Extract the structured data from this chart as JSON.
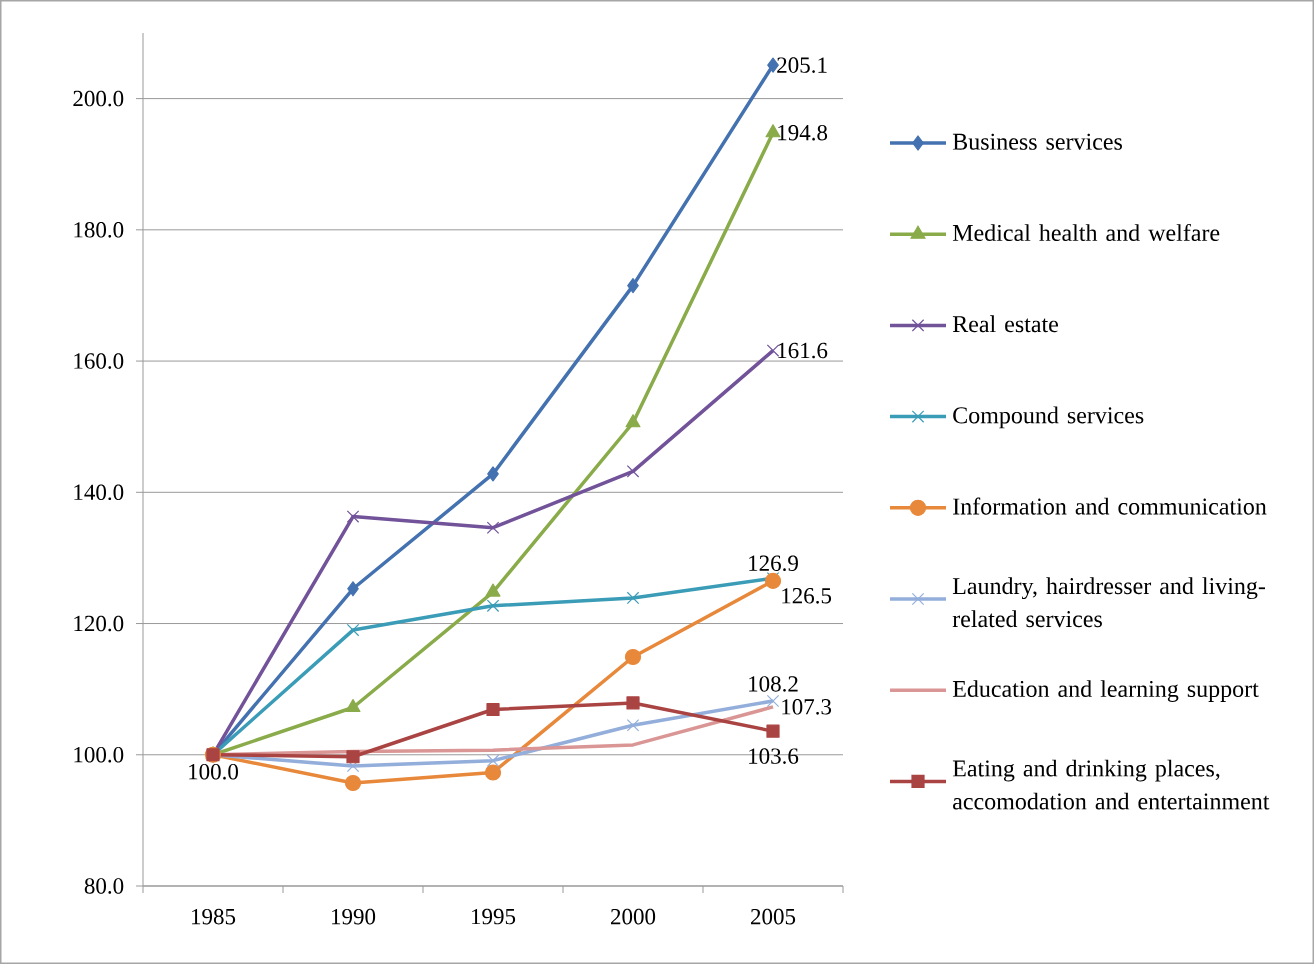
{
  "chart_data": {
    "type": "line",
    "categories": [
      "1985",
      "1990",
      "1995",
      "2000",
      "2005"
    ],
    "ylim": [
      80,
      210
    ],
    "yticks": [
      {
        "value": 80,
        "label": "80.0"
      },
      {
        "value": 100,
        "label": "100.0"
      },
      {
        "value": 120,
        "label": "120.0"
      },
      {
        "value": 140,
        "label": "140.0"
      },
      {
        "value": 160,
        "label": "160.0"
      },
      {
        "value": 180,
        "label": "180.0"
      },
      {
        "value": 200,
        "label": "200.0"
      }
    ],
    "grid": "y",
    "legend": "right",
    "line_style": "solid",
    "series": [
      {
        "name": "Business services",
        "color": "#4472b0",
        "marker": "diamond",
        "values": [
          100,
          125.3,
          142.8,
          171.5,
          205.1
        ],
        "value_labels": [
          null,
          null,
          null,
          null,
          "205.1"
        ]
      },
      {
        "name": "Medical health and welfare",
        "color": "#8aab4a",
        "marker": "triangle",
        "values": [
          100,
          107.2,
          124.8,
          150.6,
          194.8
        ],
        "value_labels": [
          null,
          null,
          null,
          null,
          "194.8"
        ]
      },
      {
        "name": "Real estate",
        "color": "#72539a",
        "marker": "cross",
        "values": [
          100,
          136.3,
          134.6,
          143.2,
          161.6
        ],
        "value_labels": [
          null,
          null,
          null,
          null,
          "161.6"
        ]
      },
      {
        "name": "Compound services",
        "color": "#3a9cb6",
        "marker": "cross",
        "values": [
          100,
          119.0,
          122.7,
          123.9,
          126.9
        ],
        "value_labels": [
          null,
          null,
          null,
          null,
          "126.9"
        ]
      },
      {
        "name": "Information and communication",
        "color": "#e8883a",
        "marker": "circle",
        "values": [
          100,
          95.7,
          97.3,
          114.9,
          126.5
        ],
        "value_labels": [
          null,
          null,
          null,
          null,
          "126.5"
        ]
      },
      {
        "name": "Laundry, hairdresser and living-related services",
        "color": "#93aedb",
        "marker": "cross",
        "values": [
          100,
          98.3,
          99.1,
          104.5,
          108.2
        ],
        "value_labels": [
          null,
          null,
          null,
          null,
          "108.2"
        ]
      },
      {
        "name": "Education and learning support",
        "color": "#d99694",
        "marker": "none",
        "values": [
          100,
          100.5,
          100.7,
          101.5,
          107.3
        ],
        "value_labels": [
          null,
          null,
          null,
          null,
          "107.3"
        ]
      },
      {
        "name": "Eating and drinking places, accomodation and entertainment",
        "color": "#aa4443",
        "marker": "square",
        "values": [
          100,
          99.7,
          106.9,
          107.9,
          103.6
        ],
        "value_labels": [
          "100.0",
          null,
          null,
          null,
          "103.6"
        ]
      }
    ]
  }
}
